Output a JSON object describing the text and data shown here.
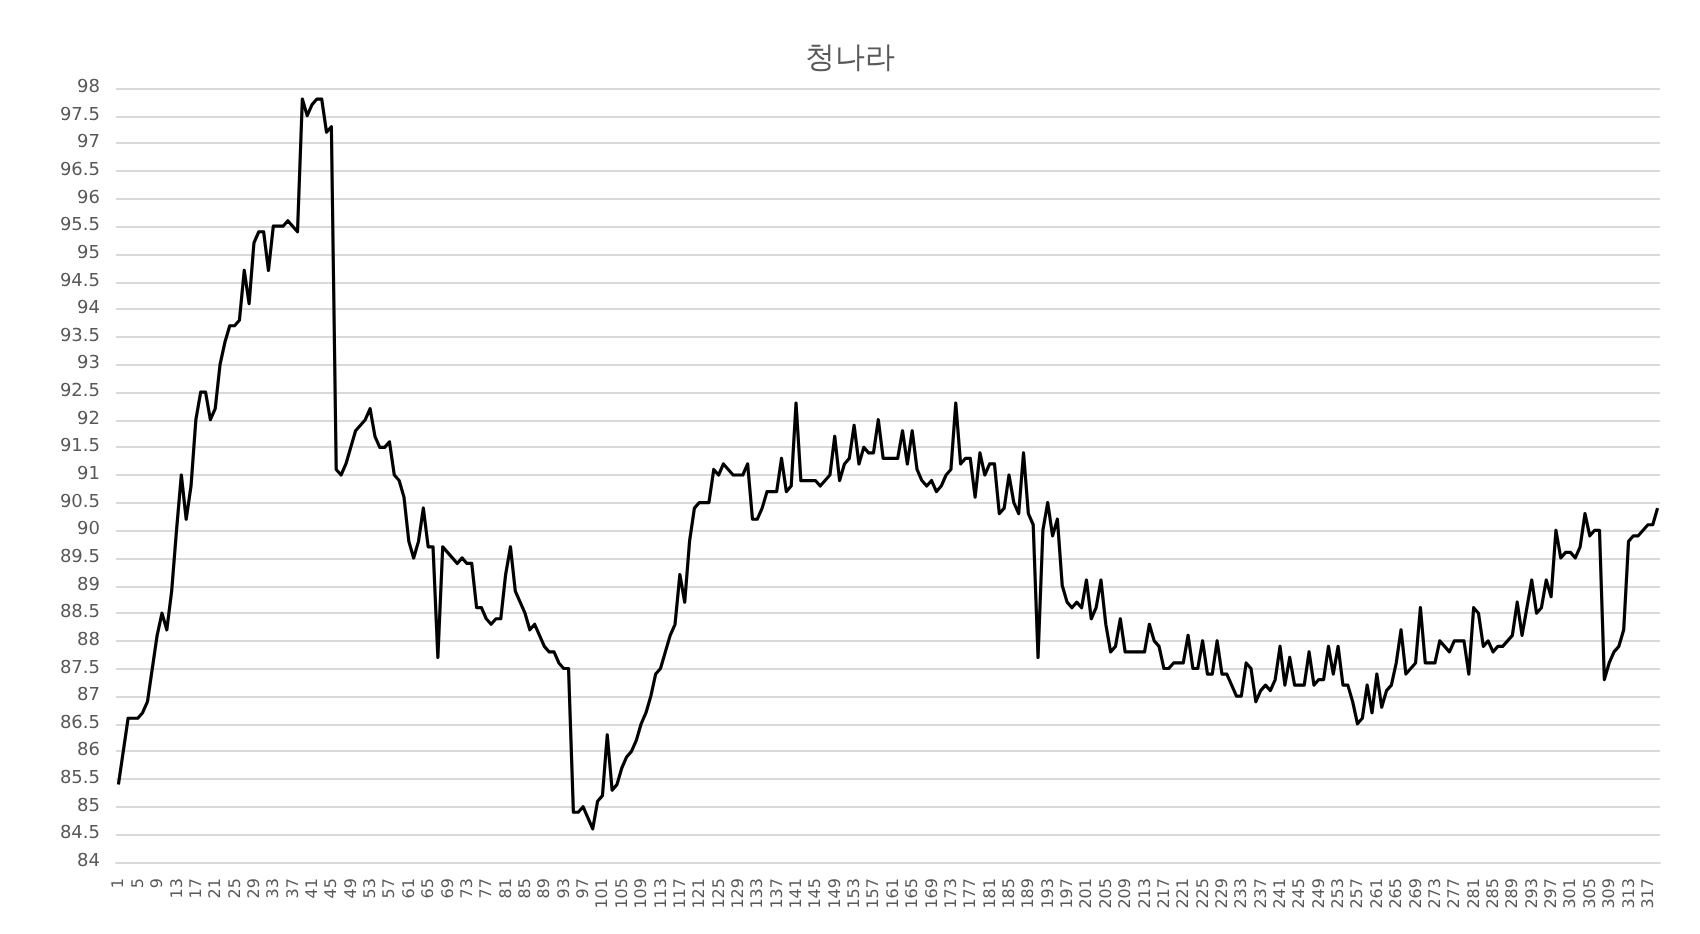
{
  "chart_data": {
    "type": "line",
    "title": "청나라",
    "categories": [
      "1",
      null,
      null,
      null,
      "5",
      null,
      null,
      null,
      "9",
      null,
      null,
      null,
      "13",
      null,
      null,
      null,
      "17",
      null,
      null,
      null,
      "21",
      null,
      null,
      null,
      "25",
      null,
      null,
      null,
      "29",
      null,
      null,
      null,
      "33",
      null,
      null,
      null,
      "37",
      null,
      null,
      null,
      "41",
      null,
      null,
      null,
      "45",
      null,
      null,
      null,
      "49",
      null,
      null,
      null,
      "53",
      null,
      null,
      null,
      "57",
      null,
      null,
      null,
      "61",
      null,
      null,
      null,
      "65",
      null,
      null,
      null,
      "69",
      null,
      null,
      null,
      "73",
      null,
      null,
      null,
      "77",
      null,
      null,
      null,
      "81",
      null,
      null,
      null,
      "85",
      null,
      null,
      null,
      "89",
      null,
      null,
      null,
      "93",
      null,
      null,
      null,
      "97",
      null,
      null,
      null,
      "101",
      null,
      null,
      null,
      "105",
      null,
      null,
      null,
      "109",
      null,
      null,
      null,
      "113",
      null,
      null,
      null,
      "117",
      null,
      null,
      null,
      "121",
      null,
      null,
      null,
      "125",
      null,
      null,
      null,
      "129",
      null,
      null,
      null,
      "133",
      null,
      null,
      null,
      "137",
      null,
      null,
      null,
      "141",
      null,
      null,
      null,
      "145",
      null,
      null,
      null,
      "149",
      null,
      null,
      null,
      "153",
      null,
      null,
      null,
      "157",
      null,
      null,
      null,
      "161",
      null,
      null,
      null,
      "165",
      null,
      null,
      null,
      "169",
      null,
      null,
      null,
      "173",
      null,
      null,
      null,
      "177",
      null,
      null,
      null,
      "181",
      null,
      null,
      null,
      "185",
      null,
      null,
      null,
      "189",
      null,
      null,
      null,
      "193",
      null,
      null,
      null,
      "197",
      null,
      null,
      null,
      "201",
      null,
      null,
      null,
      "205",
      null,
      null,
      null,
      "209",
      null,
      null,
      null,
      "213",
      null,
      null,
      null,
      "217",
      null,
      null,
      null,
      "221",
      null,
      null,
      null,
      "225",
      null,
      null,
      null,
      "229",
      null,
      null,
      null,
      "233",
      null,
      null,
      null,
      "237",
      null,
      null,
      null,
      "241",
      null,
      null,
      null,
      "245",
      null,
      null,
      null,
      "249",
      null,
      null,
      null,
      "253",
      null,
      null,
      null,
      "257",
      null,
      null,
      null,
      "261",
      null,
      null,
      null,
      "265",
      null,
      null,
      null,
      "269",
      null,
      null,
      null,
      "273",
      null,
      null,
      null,
      "277",
      null,
      null,
      null,
      "281",
      null,
      null,
      null,
      "285",
      null,
      null,
      null,
      "289",
      null,
      null,
      null,
      "293",
      null,
      null,
      null,
      "297",
      null,
      null,
      null,
      "301",
      null,
      null,
      null,
      "305",
      null,
      null,
      null,
      "309",
      null,
      null,
      null,
      "313",
      null,
      null,
      null,
      "317",
      null,
      null
    ],
    "series": [
      {
        "color": "#000000",
        "values": [
          85.4,
          86.0,
          86.6,
          86.6,
          86.6,
          86.7,
          86.9,
          87.5,
          88.1,
          88.5,
          88.2,
          88.9,
          90.0,
          91.0,
          90.2,
          90.8,
          92.0,
          92.5,
          92.5,
          92.0,
          92.2,
          93.0,
          93.4,
          93.7,
          93.7,
          93.8,
          94.7,
          94.1,
          95.2,
          95.4,
          95.4,
          94.7,
          95.5,
          95.5,
          95.5,
          95.6,
          95.5,
          95.4,
          97.8,
          97.5,
          97.7,
          97.8,
          97.8,
          97.2,
          97.3,
          91.1,
          91.0,
          91.2,
          91.5,
          91.8,
          91.9,
          92.0,
          92.2,
          91.7,
          91.5,
          91.5,
          91.6,
          91.0,
          90.9,
          90.6,
          89.8,
          89.5,
          89.8,
          90.4,
          89.7,
          89.7,
          87.7,
          89.7,
          89.6,
          89.5,
          89.4,
          89.5,
          89.4,
          89.4,
          88.6,
          88.6,
          88.4,
          88.3,
          88.4,
          88.4,
          89.2,
          89.7,
          88.9,
          88.7,
          88.5,
          88.2,
          88.3,
          88.1,
          87.9,
          87.8,
          87.8,
          87.6,
          87.5,
          87.5,
          84.9,
          84.9,
          85.0,
          84.8,
          84.6,
          85.1,
          85.2,
          86.3,
          85.3,
          85.4,
          85.7,
          85.9,
          86.0,
          86.2,
          86.5,
          86.7,
          87.0,
          87.4,
          87.5,
          87.8,
          88.1,
          88.3,
          89.2,
          88.7,
          89.8,
          90.4,
          90.5,
          90.5,
          90.5,
          91.1,
          91.0,
          91.2,
          91.1,
          91.0,
          91.0,
          91.0,
          91.2,
          90.2,
          90.2,
          90.4,
          90.7,
          90.7,
          90.7,
          91.3,
          90.7,
          90.8,
          92.3,
          90.9,
          90.9,
          90.9,
          90.9,
          90.8,
          90.9,
          91.0,
          91.7,
          90.9,
          91.2,
          91.3,
          91.9,
          91.2,
          91.5,
          91.4,
          91.4,
          92.0,
          91.3,
          91.3,
          91.3,
          91.3,
          91.8,
          91.2,
          91.8,
          91.1,
          90.9,
          90.8,
          90.9,
          90.7,
          90.8,
          91.0,
          91.1,
          92.3,
          91.2,
          91.3,
          91.3,
          90.6,
          91.4,
          91.0,
          91.2,
          91.2,
          90.3,
          90.4,
          91.0,
          90.5,
          90.3,
          91.4,
          90.3,
          90.1,
          87.7,
          90.0,
          90.5,
          89.9,
          90.2,
          89.0,
          88.7,
          88.6,
          88.7,
          88.6,
          89.1,
          88.4,
          88.6,
          89.1,
          88.3,
          87.8,
          87.9,
          88.4,
          87.8,
          87.8,
          87.8,
          87.8,
          87.8,
          88.3,
          88.0,
          87.9,
          87.5,
          87.5,
          87.6,
          87.6,
          87.6,
          88.1,
          87.5,
          87.5,
          88.0,
          87.4,
          87.4,
          88.0,
          87.4,
          87.4,
          87.2,
          87.0,
          87.0,
          87.6,
          87.5,
          86.9,
          87.1,
          87.2,
          87.1,
          87.3,
          87.9,
          87.2,
          87.7,
          87.2,
          87.2,
          87.2,
          87.8,
          87.2,
          87.3,
          87.3,
          87.9,
          87.4,
          87.9,
          87.2,
          87.2,
          86.9,
          86.5,
          86.6,
          87.2,
          86.7,
          87.4,
          86.8,
          87.1,
          87.2,
          87.6,
          88.2,
          87.4,
          87.5,
          87.6,
          88.6,
          87.6,
          87.6,
          87.6,
          88.0,
          87.9,
          87.8,
          88.0,
          88.0,
          88.0,
          87.4,
          88.6,
          88.5,
          87.9,
          88.0,
          87.8,
          87.9,
          87.9,
          88.0,
          88.1,
          88.7,
          88.1,
          88.6,
          89.1,
          88.5,
          88.6,
          89.1,
          88.8,
          90.0,
          89.5,
          89.6,
          89.6,
          89.5,
          89.7,
          90.3,
          89.9,
          90.0,
          90.0,
          87.3,
          87.6,
          87.8,
          87.9,
          88.2,
          89.8,
          89.9,
          89.9,
          90.0,
          90.1,
          90.1,
          90.4
        ]
      }
    ],
    "ylim": [
      84,
      98
    ],
    "yticks": [
      84,
      84.5,
      85,
      85.5,
      86,
      86.5,
      87,
      87.5,
      88,
      88.5,
      89,
      89.5,
      90,
      90.5,
      91,
      91.5,
      92,
      92.5,
      93,
      93.5,
      94,
      94.5,
      95,
      95.5,
      96,
      96.5,
      97,
      97.5,
      98
    ],
    "grid": "y",
    "marker": "none",
    "line_style": "solid"
  }
}
